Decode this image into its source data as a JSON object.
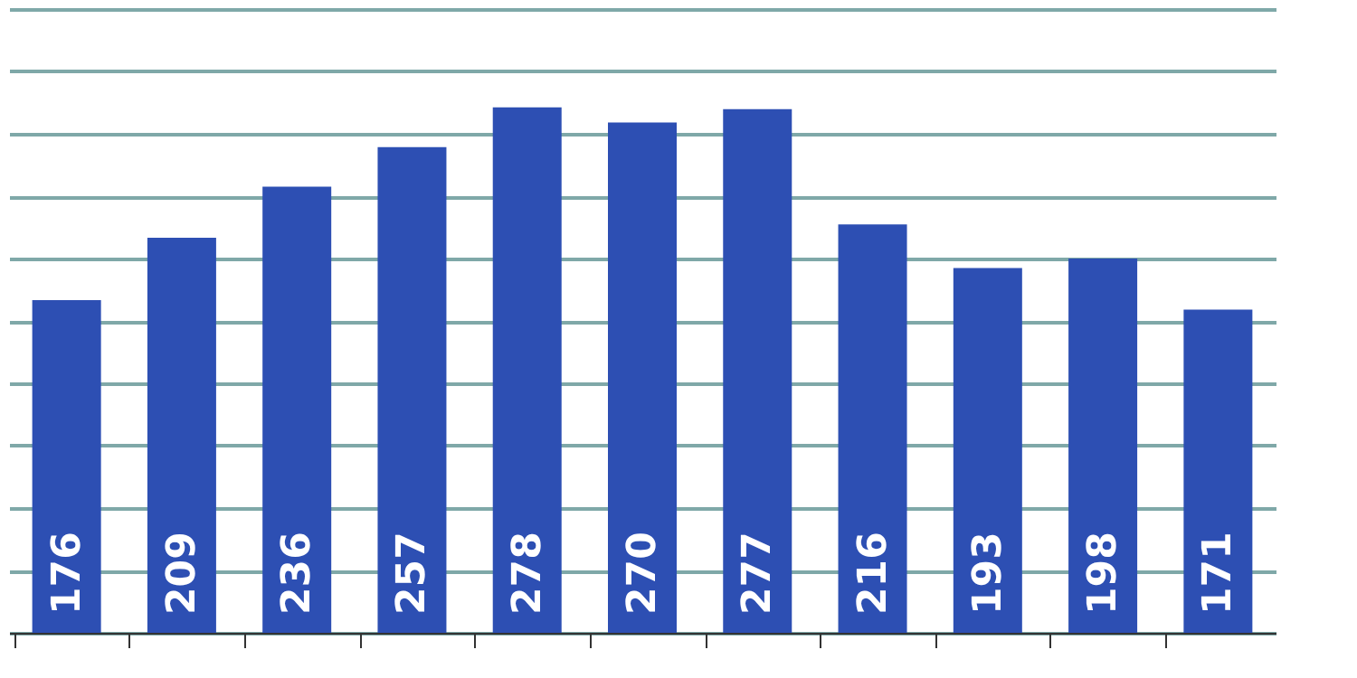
{
  "chart_data": {
    "type": "bar",
    "categories": [
      null,
      null,
      null,
      null,
      null,
      null,
      null,
      null,
      null,
      null,
      null
    ],
    "values": [
      176,
      209,
      236,
      257,
      278,
      270,
      277,
      216,
      193,
      198,
      171
    ],
    "color": "#2d4fb3",
    "data_labels": true,
    "grid": "y",
    "tick_labels": false,
    "ylim": [
      0,
      330
    ],
    "yticks": [
      {
        "value": 0,
        "label": null
      },
      {
        "value": 33,
        "label": null
      },
      {
        "value": 66,
        "label": null
      },
      {
        "value": 99,
        "label": null
      },
      {
        "value": 132,
        "label": null
      },
      {
        "value": 165,
        "label": null
      },
      {
        "value": 198,
        "label": null
      },
      {
        "value": 231,
        "label": null
      },
      {
        "value": 264,
        "label": null
      },
      {
        "value": 297,
        "label": null
      },
      {
        "value": 330,
        "label": null
      }
    ]
  }
}
